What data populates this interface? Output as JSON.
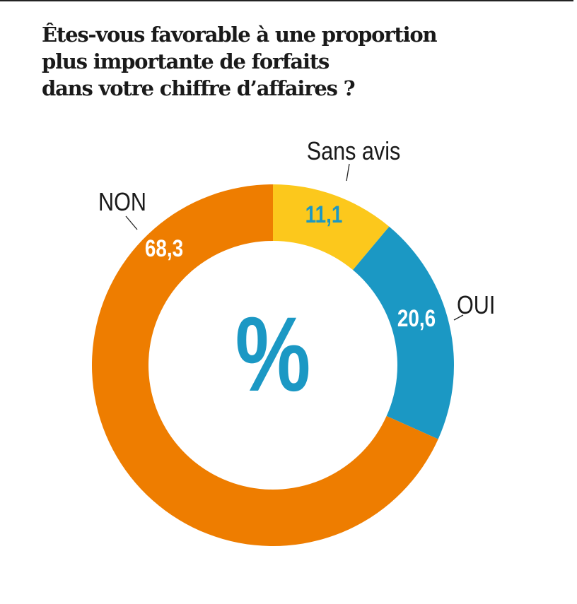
{
  "title_lines": [
    "Êtes-vous favorable à une proportion",
    "plus importante de forfaits",
    "dans votre chiffre d’affaires ?"
  ],
  "center_symbol": "%",
  "colors": {
    "orange": "#ee7d00",
    "yellow": "#fcc81c",
    "blue": "#1b98c4",
    "text": "#1a1a1a"
  },
  "chart_data": {
    "type": "pie",
    "variant": "donut",
    "title": "Êtes-vous favorable à une proportion plus importante de forfaits dans votre chiffre d’affaires ?",
    "unit": "%",
    "categories": [
      "Sans avis",
      "OUI",
      "NON"
    ],
    "values": [
      11.1,
      20.6,
      68.3
    ],
    "value_labels": [
      "11,1",
      "20,6",
      "68,3"
    ],
    "colors": [
      "#fcc81c",
      "#1b98c4",
      "#ee7d00"
    ],
    "value_label_colors": [
      "#1b98c4",
      "#ffffff",
      "#ffffff"
    ],
    "start": "12 o'clock",
    "direction": "clockwise"
  }
}
